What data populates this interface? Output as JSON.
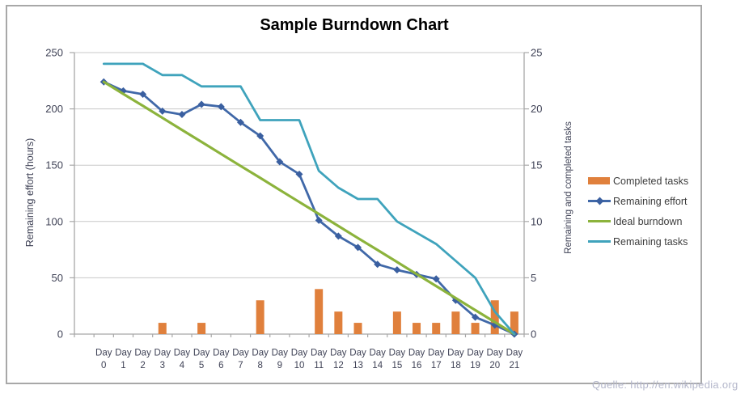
{
  "chart_data": {
    "type": "combo_bar_line",
    "title": "Sample Burndown Chart",
    "categories": [
      "Day 0",
      "Day 1",
      "Day 2",
      "Day 3",
      "Day 4",
      "Day 5",
      "Day 6",
      "Day 7",
      "Day 8",
      "Day 9",
      "Day 10",
      "Day 11",
      "Day 12",
      "Day 13",
      "Day 14",
      "Day 15",
      "Day 16",
      "Day 17",
      "Day 18",
      "Day 19",
      "Day 20",
      "Day 21"
    ],
    "left_axis": {
      "title": "Remaining effort (hours)",
      "min": 0,
      "max": 250,
      "step": 50,
      "ticks": [
        0,
        50,
        100,
        150,
        200,
        250
      ]
    },
    "right_axis": {
      "title": "Remaining and  completed tasks",
      "min": 0,
      "max": 25,
      "step": 5,
      "ticks": [
        0,
        5,
        10,
        15,
        20,
        25
      ]
    },
    "grid": true,
    "legend": {
      "position": "right",
      "entries": [
        "Completed tasks",
        "Remaining effort",
        "Ideal burndown",
        "Remaining tasks"
      ]
    },
    "series": [
      {
        "name": "Completed tasks",
        "type": "bar",
        "axis": "right",
        "color": "#e0803c",
        "values": [
          0,
          0,
          0,
          1,
          0,
          1,
          0,
          0,
          3,
          0,
          0,
          4,
          2,
          1,
          0,
          2,
          1,
          1,
          2,
          1,
          3,
          2
        ]
      },
      {
        "name": "Remaining effort",
        "type": "line",
        "axis": "left",
        "color": "#4068a8",
        "marker": "diamond",
        "marker_color": "#3a5fa0",
        "values": [
          224,
          216,
          213,
          198,
          195,
          204,
          202,
          188,
          176,
          153,
          142,
          101,
          87,
          77,
          62,
          57,
          53,
          49,
          30,
          15,
          8,
          0
        ]
      },
      {
        "name": "Ideal burndown",
        "type": "line",
        "axis": "left",
        "color": "#8cb33c",
        "values": [
          224,
          213.3,
          202.7,
          192,
          181.3,
          170.7,
          160,
          149.3,
          138.7,
          128,
          117.3,
          106.7,
          96,
          85.3,
          74.7,
          64,
          53.3,
          42.7,
          32,
          21.3,
          10.7,
          0
        ]
      },
      {
        "name": "Remaining tasks",
        "type": "line",
        "axis": "right",
        "color": "#3fa3bc",
        "values": [
          24,
          24,
          24,
          23,
          23,
          22,
          22,
          22,
          19,
          19,
          19,
          14.5,
          13,
          12,
          12,
          10,
          9,
          8,
          6.5,
          5,
          2,
          0
        ]
      }
    ],
    "colors": {
      "grid": "#c8c8c8",
      "axis": "#a8a8a8",
      "tick_text": "#3f4256",
      "title_text": "#000000",
      "frame_border": "#a8a8a8"
    }
  },
  "source_note": "Quelle: http://en.wikipedia.org"
}
